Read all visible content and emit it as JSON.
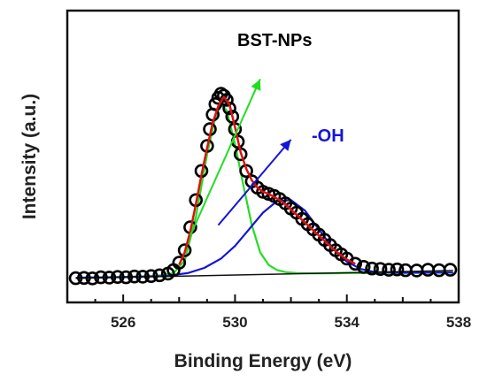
{
  "chart_data": {
    "type": "scatter",
    "title": "",
    "xlabel": "Binding Energy (eV)",
    "ylabel": "Intensity (a.u.)",
    "xlim": [
      524,
      538
    ],
    "ylim": [
      0,
      100
    ],
    "xticks": [
      "526",
      "530",
      "534",
      "538"
    ],
    "yticks_shown": false,
    "grid": false,
    "legend": "none",
    "annotations": [
      {
        "text": "BST-NPs",
        "color": "#000000",
        "arrow_color": "#22dd22",
        "arrow_from": [
          528.4,
          21
        ],
        "arrow_to": [
          530.9,
          96
        ]
      },
      {
        "text": "-OH",
        "color": "#1515d6",
        "arrow_color": "#1515d6",
        "arrow_from": [
          529.4,
          26
        ],
        "arrow_to": [
          532.0,
          67
        ]
      }
    ],
    "series": [
      {
        "name": "",
        "kind": "points",
        "color": "#000000",
        "x": [
          524.3,
          524.6,
          524.9,
          525.2,
          525.5,
          525.8,
          526.1,
          526.4,
          526.7,
          527.0,
          527.3,
          527.6,
          527.8,
          528.0,
          528.2,
          528.4,
          528.6,
          528.8,
          529.0,
          529.1,
          529.2,
          529.3,
          529.4,
          529.5,
          529.6,
          529.7,
          529.8,
          529.9,
          530.0,
          530.1,
          530.2,
          530.4,
          530.6,
          530.8,
          531.0,
          531.2,
          531.4,
          531.6,
          531.8,
          532.0,
          532.2,
          532.4,
          532.6,
          532.8,
          533.0,
          533.2,
          533.4,
          533.6,
          533.8,
          534.0,
          534.3,
          534.6,
          534.9,
          535.2,
          535.5,
          535.8,
          536.1,
          536.5,
          536.9,
          537.3,
          537.7
        ],
        "y": [
          0.6,
          0.7,
          0.5,
          1.0,
          0.9,
          1.2,
          1.0,
          1.4,
          1.3,
          1.6,
          2.0,
          2.8,
          4.5,
          8.0,
          14.0,
          25.0,
          38.0,
          52.0,
          64.0,
          72.0,
          79.0,
          84.0,
          87.0,
          89.0,
          88.0,
          86.0,
          82.0,
          78.0,
          72.0,
          66.0,
          60.0,
          52.0,
          47.0,
          44.0,
          42.0,
          41.0,
          40.0,
          38.5,
          36.5,
          34.0,
          32.0,
          29.0,
          26.5,
          24.0,
          21.5,
          19.0,
          16.5,
          14.0,
          12.0,
          10.0,
          7.5,
          6.0,
          5.2,
          5.0,
          4.6,
          4.8,
          4.4,
          4.3,
          4.6,
          4.4,
          4.6
        ]
      },
      {
        "name": "",
        "kind": "line",
        "color": "#e01010",
        "x": [
          528.0,
          528.2,
          528.4,
          528.6,
          528.8,
          529.0,
          529.2,
          529.4,
          529.6,
          529.8,
          530.0,
          530.2,
          530.4,
          530.6,
          530.8,
          531.0,
          531.2,
          531.4,
          531.6,
          531.8,
          532.0,
          532.2,
          532.4,
          532.6,
          532.8,
          533.0,
          533.2,
          533.4,
          533.6,
          533.8,
          534.0,
          534.3
        ],
        "y": [
          7.0,
          13.0,
          23.0,
          36.0,
          50.0,
          63.0,
          75.0,
          83.0,
          87.5,
          84.0,
          73.0,
          61.0,
          53.0,
          47.5,
          44.0,
          42.0,
          41.0,
          39.5,
          38.0,
          36.0,
          33.5,
          31.0,
          28.5,
          26.0,
          23.5,
          21.0,
          18.5,
          16.0,
          13.5,
          11.5,
          9.5,
          7.5
        ]
      },
      {
        "name": "",
        "kind": "line",
        "color": "#22dd22",
        "x": [
          524.3,
          526.0,
          527.2,
          527.8,
          528.2,
          528.6,
          529.0,
          529.3,
          529.5,
          529.7,
          530.0,
          530.3,
          530.6,
          530.9,
          531.2,
          531.5,
          531.8,
          532.2,
          532.8,
          534.0,
          537.8
        ],
        "y": [
          0.8,
          1.2,
          1.7,
          3.0,
          9.0,
          30.0,
          60.0,
          78.0,
          84.0,
          81.0,
          65.0,
          45.0,
          26.0,
          13.0,
          7.0,
          4.5,
          3.5,
          3.0,
          2.9,
          3.0,
          3.2
        ]
      },
      {
        "name": "",
        "kind": "line",
        "color": "#1515d6",
        "x": [
          524.3,
          526.0,
          527.5,
          528.3,
          528.9,
          529.5,
          530.0,
          530.5,
          531.0,
          531.5,
          532.0,
          532.5,
          533.0,
          533.5,
          534.0,
          534.5,
          535.0,
          536.0,
          537.8
        ],
        "y": [
          0.8,
          1.1,
          1.6,
          3.0,
          5.5,
          10.0,
          16.0,
          24.0,
          32.0,
          37.5,
          38.0,
          33.0,
          24.0,
          15.0,
          8.5,
          5.0,
          3.5,
          3.2,
          3.3
        ]
      },
      {
        "name": "",
        "kind": "line",
        "color": "#111111",
        "x": [
          524.3,
          537.8
        ],
        "y": [
          0.5,
          4.3
        ]
      }
    ]
  }
}
